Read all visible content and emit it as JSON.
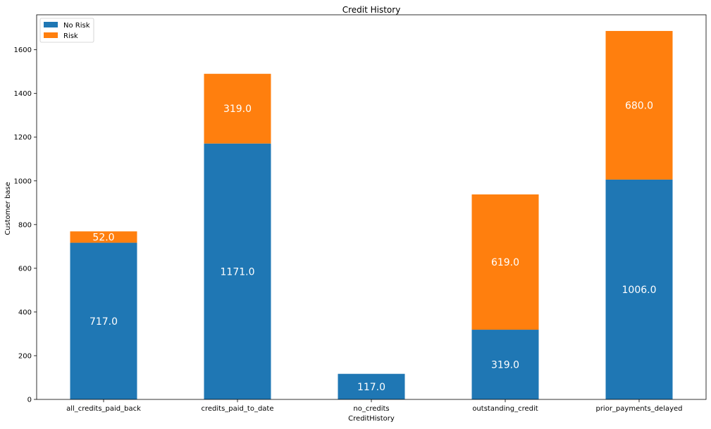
{
  "chart_data": {
    "type": "bar",
    "stacked": true,
    "title": "Credit History",
    "xlabel": "CreditHistory",
    "ylabel": "Customer base",
    "categories": [
      "all_credits_paid_back",
      "credits_paid_to_date",
      "no_credits",
      "outstanding_credit",
      "prior_payments_delayed"
    ],
    "series": [
      {
        "name": "No Risk",
        "color": "#1f77b4",
        "values": [
          717.0,
          1171.0,
          117.0,
          319.0,
          1006.0
        ],
        "labels": [
          "717.0",
          "1171.0",
          "117.0",
          "319.0",
          "1006.0"
        ]
      },
      {
        "name": "Risk",
        "color": "#ff7f0e",
        "values": [
          52.0,
          319.0,
          0,
          619.0,
          680.0
        ],
        "labels": [
          "52.0",
          "319.0",
          "",
          "619.0",
          "680.0"
        ]
      }
    ],
    "ylim": [
      0,
      1760
    ],
    "yticks": [
      0,
      200,
      400,
      600,
      800,
      1000,
      1200,
      1400,
      1600
    ],
    "ytick_labels": [
      "0",
      "200",
      "400",
      "600",
      "800",
      "1000",
      "1200",
      "1400",
      "1600"
    ],
    "legend_position": "top-left",
    "grid": false
  }
}
